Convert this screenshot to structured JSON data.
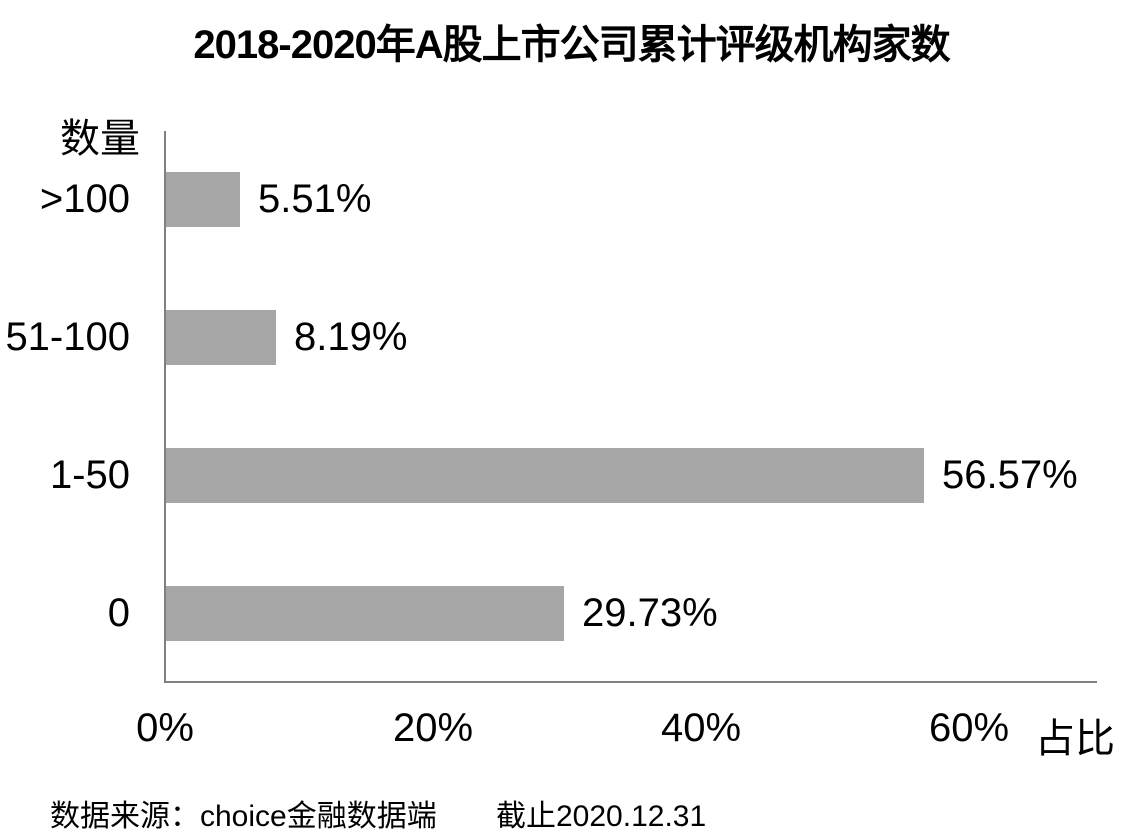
{
  "title": "2018-2020年A股上市公司累计评级机构家数",
  "chart_data": {
    "type": "bar",
    "orientation": "horizontal",
    "title": "2018-2020年A股上市公司累计评级机构家数",
    "ylabel": "数量",
    "xlabel": "占比",
    "categories": [
      ">100",
      "51-100",
      "1-50",
      "0"
    ],
    "values": [
      5.51,
      8.19,
      56.57,
      29.73
    ],
    "value_labels": [
      "5.51%",
      "8.19%",
      "56.57%",
      "29.73%"
    ],
    "x_ticks": [
      {
        "value": 0,
        "label": "0%"
      },
      {
        "value": 20,
        "label": "20%"
      },
      {
        "value": 40,
        "label": "40%"
      },
      {
        "value": 60,
        "label": "60%"
      }
    ],
    "xlim": [
      0,
      69.5
    ],
    "grid": false,
    "legend": "none",
    "bar_color": "#a6a6a6",
    "axis_color": "#808080",
    "text_color": "#000000"
  },
  "footer": {
    "source": "数据来源：choice金融数据端",
    "cutoff": "截止2020.12.31"
  }
}
